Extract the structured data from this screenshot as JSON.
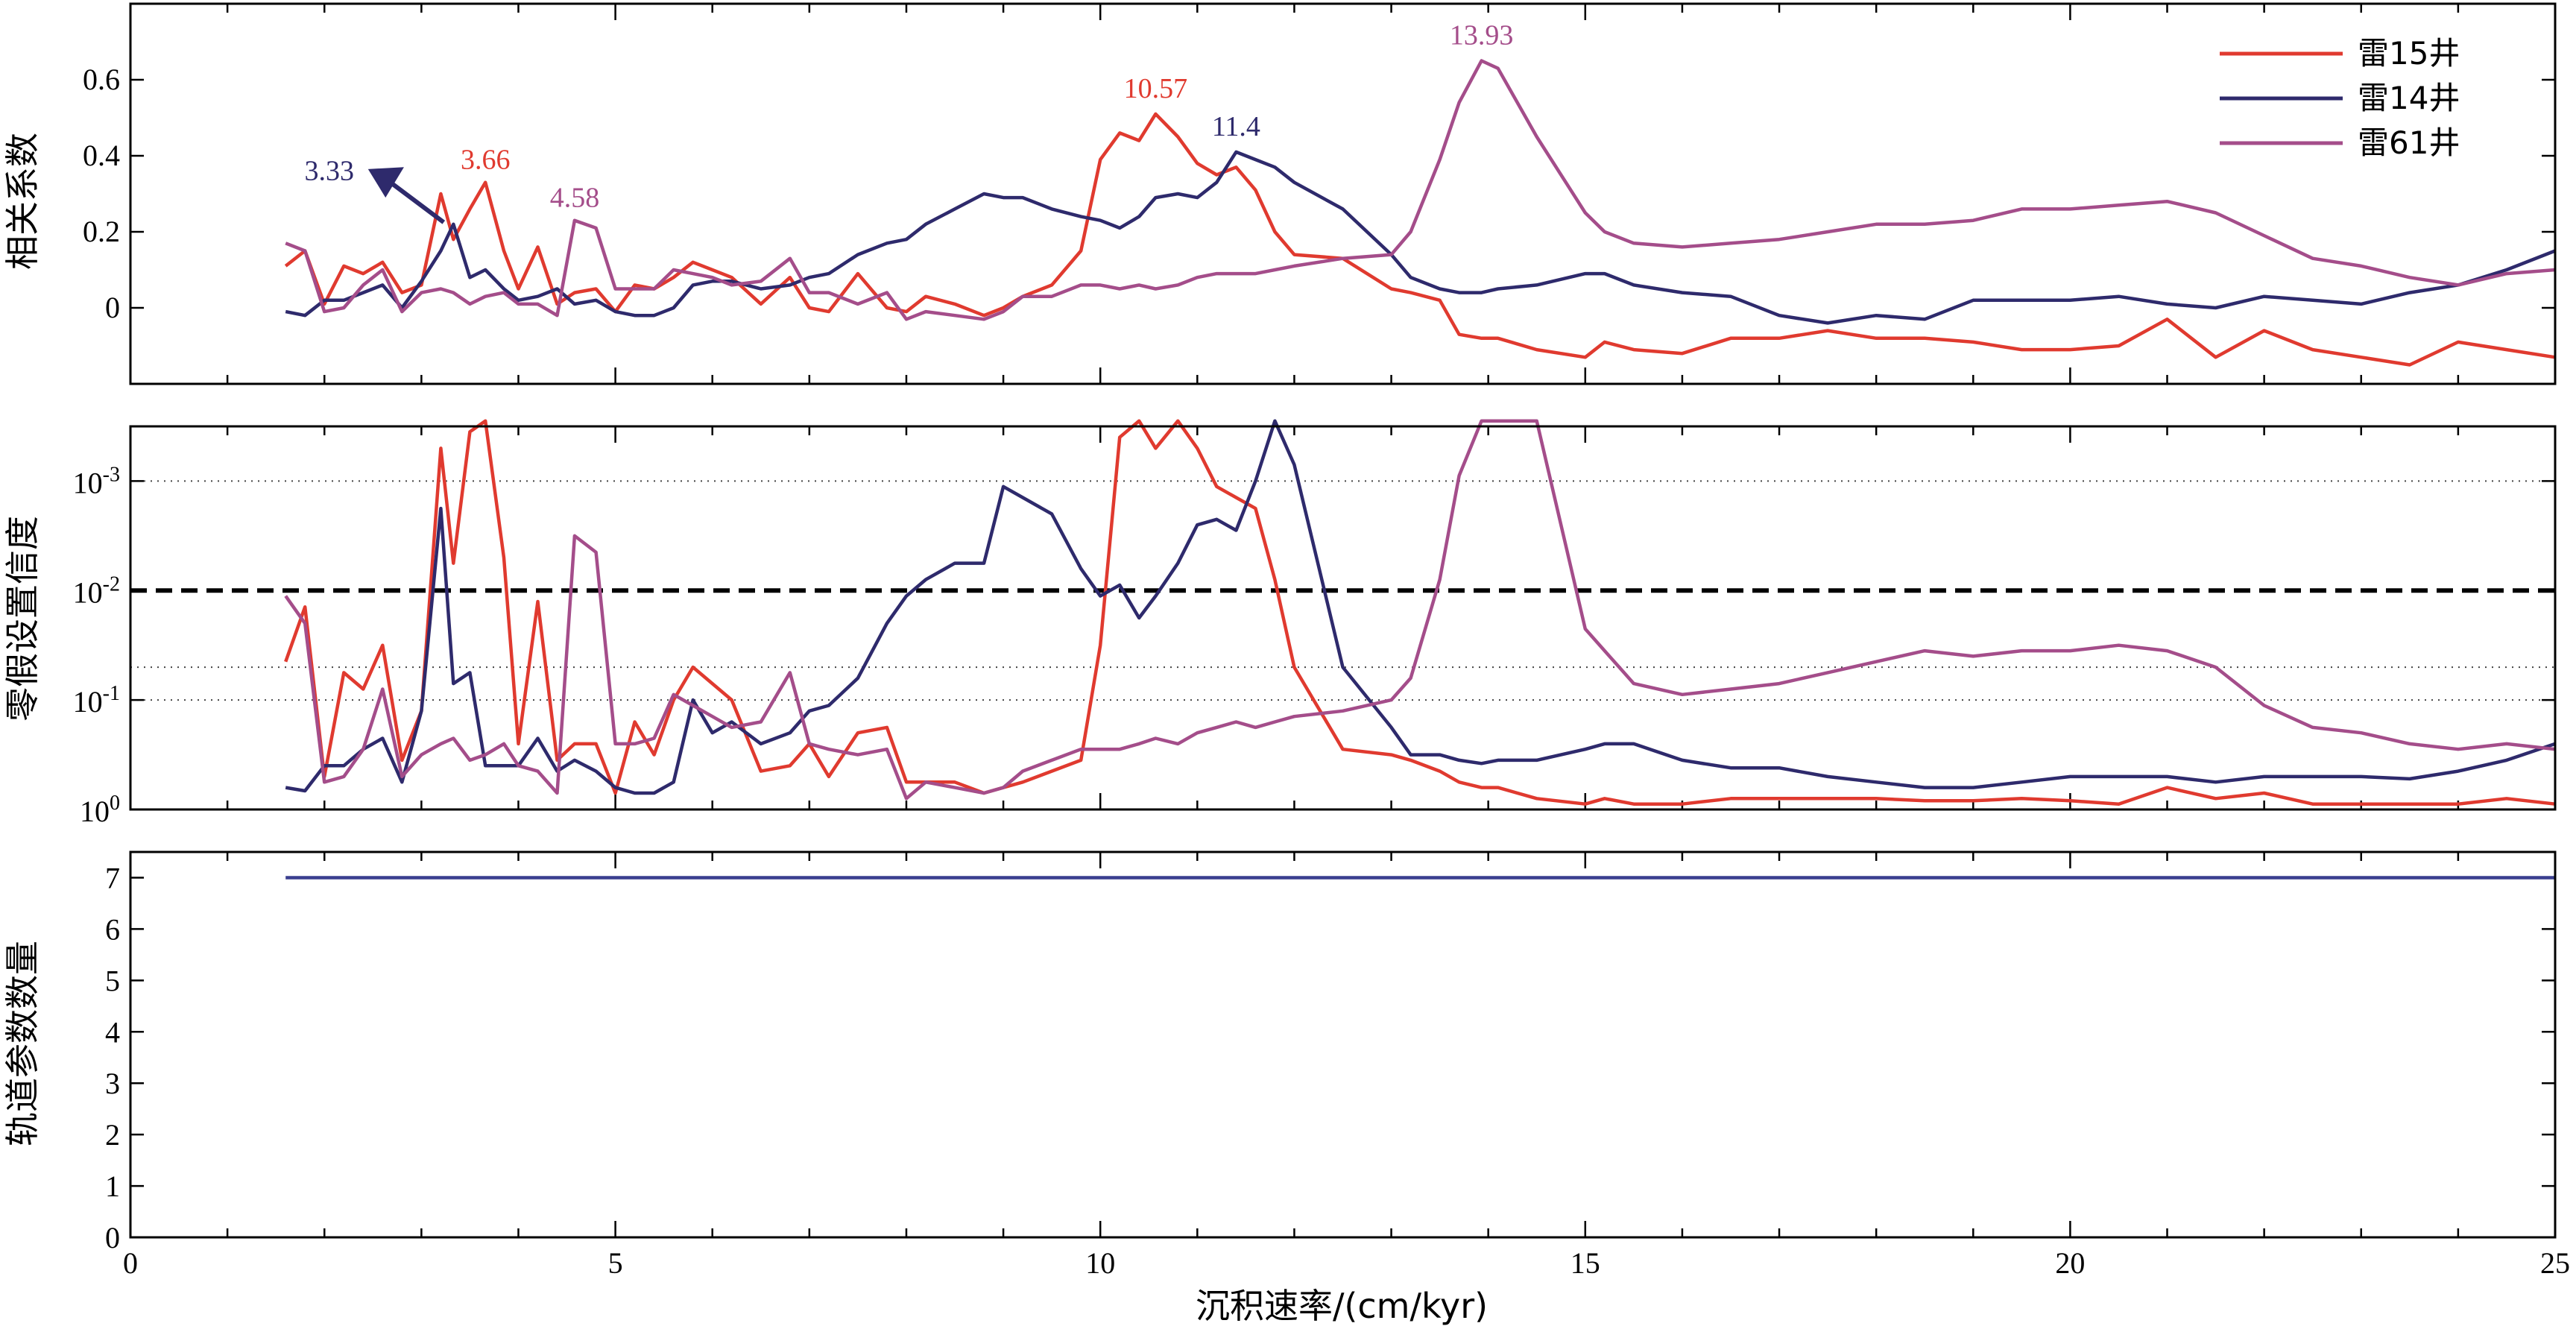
{
  "colors": {
    "lei15": "#e03a2f",
    "lei14": "#2e2a6c",
    "lei61": "#a44d8a"
  },
  "chart_data": [
    {
      "type": "line",
      "ylabel": "相关系数",
      "xlabel": "",
      "xlim": [
        0,
        25
      ],
      "ylim": [
        -0.2,
        0.8
      ],
      "xticks": [
        "0",
        "5",
        "10",
        "15",
        "20",
        "25"
      ],
      "yticks": [
        "0",
        "0.2",
        "0.4",
        "0.6"
      ],
      "legend": "top-right",
      "x": [
        1.6,
        1.8,
        2,
        2.2,
        2.4,
        2.6,
        2.8,
        3,
        3.2,
        3.33,
        3.5,
        3.66,
        3.85,
        4,
        4.2,
        4.4,
        4.58,
        4.8,
        5,
        5.2,
        5.4,
        5.6,
        5.8,
        6,
        6.2,
        6.5,
        6.8,
        7,
        7.2,
        7.5,
        7.8,
        8,
        8.2,
        8.5,
        8.8,
        9,
        9.2,
        9.5,
        9.8,
        10,
        10.2,
        10.4,
        10.57,
        10.8,
        11,
        11.2,
        11.4,
        11.6,
        11.8,
        12,
        12.5,
        13,
        13.2,
        13.5,
        13.7,
        13.93,
        14.1,
        14.5,
        15,
        15.2,
        15.5,
        16,
        16.5,
        17,
        17.5,
        18,
        18.5,
        19,
        19.5,
        20,
        20.5,
        21,
        21.5,
        22,
        22.5,
        23,
        23.5,
        24,
        24.5,
        25
      ],
      "series": [
        {
          "name": "雷15井",
          "color_key": "lei15",
          "values": [
            0.11,
            0.15,
            0.01,
            0.11,
            0.09,
            0.12,
            0.04,
            0.06,
            0.3,
            0.18,
            0.26,
            0.33,
            0.15,
            0.05,
            0.16,
            0.01,
            0.04,
            0.05,
            -0.01,
            0.06,
            0.05,
            0.08,
            0.12,
            0.1,
            0.08,
            0.01,
            0.08,
            0.0,
            -0.01,
            0.09,
            0.0,
            -0.01,
            0.03,
            0.01,
            -0.02,
            0.0,
            0.03,
            0.06,
            0.15,
            0.39,
            0.46,
            0.44,
            0.51,
            0.45,
            0.38,
            0.35,
            0.37,
            0.31,
            0.2,
            0.14,
            0.13,
            0.05,
            0.04,
            0.02,
            -0.07,
            -0.08,
            -0.08,
            -0.11,
            -0.13,
            -0.09,
            -0.11,
            -0.12,
            -0.08,
            -0.08,
            -0.06,
            -0.08,
            -0.08,
            -0.09,
            -0.11,
            -0.11,
            -0.1,
            -0.03,
            -0.13,
            -0.06,
            -0.11,
            -0.13,
            -0.15,
            -0.09,
            -0.11,
            -0.13
          ]
        },
        {
          "name": "雷14井",
          "color_key": "lei14",
          "values": [
            -0.01,
            -0.02,
            0.02,
            0.02,
            0.04,
            0.06,
            0.0,
            0.07,
            0.15,
            0.22,
            0.08,
            0.1,
            0.05,
            0.02,
            0.03,
            0.05,
            0.01,
            0.02,
            -0.01,
            -0.02,
            -0.02,
            0.0,
            0.06,
            0.07,
            0.07,
            0.05,
            0.06,
            0.08,
            0.09,
            0.14,
            0.17,
            0.18,
            0.22,
            0.26,
            0.3,
            0.29,
            0.29,
            0.26,
            0.24,
            0.23,
            0.21,
            0.24,
            0.29,
            0.3,
            0.29,
            0.33,
            0.41,
            0.39,
            0.37,
            0.33,
            0.26,
            0.14,
            0.08,
            0.05,
            0.04,
            0.04,
            0.05,
            0.06,
            0.09,
            0.09,
            0.06,
            0.04,
            0.03,
            -0.02,
            -0.04,
            -0.02,
            -0.03,
            0.02,
            0.02,
            0.02,
            0.03,
            0.01,
            0.0,
            0.03,
            0.02,
            0.01,
            0.04,
            0.06,
            0.1,
            0.15
          ]
        },
        {
          "name": "雷61井",
          "color_key": "lei61",
          "values": [
            0.17,
            0.15,
            -0.01,
            0.0,
            0.06,
            0.1,
            -0.01,
            0.04,
            0.05,
            0.04,
            0.01,
            0.03,
            0.04,
            0.01,
            0.01,
            -0.02,
            0.23,
            0.21,
            0.05,
            0.05,
            0.05,
            0.1,
            0.09,
            0.08,
            0.06,
            0.07,
            0.13,
            0.04,
            0.04,
            0.01,
            0.04,
            -0.03,
            -0.01,
            -0.02,
            -0.03,
            -0.01,
            0.03,
            0.03,
            0.06,
            0.06,
            0.05,
            0.06,
            0.05,
            0.06,
            0.08,
            0.09,
            0.09,
            0.09,
            0.1,
            0.11,
            0.13,
            0.14,
            0.2,
            0.39,
            0.54,
            0.65,
            0.63,
            0.45,
            0.25,
            0.2,
            0.17,
            0.16,
            0.17,
            0.18,
            0.2,
            0.22,
            0.22,
            0.23,
            0.26,
            0.26,
            0.27,
            0.28,
            0.25,
            0.19,
            0.13,
            0.11,
            0.08,
            0.06,
            0.09,
            0.1
          ]
        }
      ],
      "annotations": [
        {
          "text": "3.33",
          "x": 3.33,
          "y": 0.22,
          "color_key": "lei14",
          "arrow": true
        },
        {
          "text": "3.66",
          "x": 3.66,
          "y": 0.33,
          "color_key": "lei15"
        },
        {
          "text": "4.58",
          "x": 4.58,
          "y": 0.23,
          "color_key": "lei61"
        },
        {
          "text": "10.57",
          "x": 10.57,
          "y": 0.51,
          "color_key": "lei15"
        },
        {
          "text": "11.4",
          "x": 11.4,
          "y": 0.41,
          "color_key": "lei14"
        },
        {
          "text": "13.93",
          "x": 13.93,
          "y": 0.65,
          "color_key": "lei61"
        }
      ]
    },
    {
      "type": "line",
      "ylabel": "零假设置信度",
      "xlabel": "",
      "xlim": [
        0,
        25
      ],
      "yscale": "log-reversed",
      "ylim_log10": [
        0,
        -3.5
      ],
      "yticks": [
        {
          "base": "10",
          "exp": "0",
          "log10": 0
        },
        {
          "base": "10",
          "exp": "-1",
          "log10": -1
        },
        {
          "base": "10",
          "exp": "-2",
          "log10": -2
        },
        {
          "base": "10",
          "exp": "-3",
          "log10": -3
        }
      ],
      "dashed_threshold_log10": -2,
      "dotted_lines_log10": [
        -1,
        -1.3,
        -3
      ],
      "x": [
        1.6,
        1.8,
        2,
        2.2,
        2.4,
        2.6,
        2.8,
        3,
        3.2,
        3.33,
        3.5,
        3.66,
        3.85,
        4,
        4.2,
        4.4,
        4.58,
        4.8,
        5,
        5.2,
        5.4,
        5.6,
        5.8,
        6,
        6.2,
        6.5,
        6.8,
        7,
        7.2,
        7.5,
        7.8,
        8,
        8.2,
        8.5,
        8.8,
        9,
        9.2,
        9.5,
        9.8,
        10,
        10.2,
        10.4,
        10.57,
        10.8,
        11,
        11.2,
        11.4,
        11.6,
        11.8,
        12,
        12.5,
        13,
        13.2,
        13.5,
        13.7,
        13.93,
        14.1,
        14.5,
        15,
        15.2,
        15.5,
        16,
        16.5,
        17,
        17.5,
        18,
        18.5,
        19,
        19.5,
        20,
        20.5,
        21,
        21.5,
        22,
        22.5,
        23,
        23.5,
        24,
        24.5,
        25
      ],
      "series": [
        {
          "name": "雷15井",
          "color_key": "lei15",
          "log10_values": [
            -1.35,
            -1.85,
            -0.3,
            -1.25,
            -1.1,
            -1.5,
            -0.45,
            -0.9,
            -3.3,
            -2.25,
            -3.45,
            -3.55,
            -2.3,
            -0.6,
            -1.9,
            -0.45,
            -0.6,
            -0.6,
            -0.15,
            -0.8,
            -0.5,
            -1.0,
            -1.3,
            -1.15,
            -1.0,
            -0.35,
            -0.4,
            -0.6,
            -0.3,
            -0.7,
            -0.75,
            -0.25,
            -0.25,
            -0.25,
            -0.15,
            -0.2,
            -0.25,
            -0.35,
            -0.45,
            -1.5,
            -3.4,
            -3.55,
            -3.3,
            -3.55,
            -3.3,
            -2.95,
            -2.85,
            -2.75,
            -2.1,
            -1.3,
            -0.55,
            -0.5,
            -0.45,
            -0.35,
            -0.25,
            -0.2,
            -0.2,
            -0.1,
            -0.05,
            -0.1,
            -0.05,
            -0.05,
            -0.1,
            -0.1,
            -0.1,
            -0.1,
            -0.08,
            -0.08,
            -0.1,
            -0.08,
            -0.05,
            -0.2,
            -0.1,
            -0.15,
            -0.05,
            -0.05,
            -0.05,
            -0.05,
            -0.1,
            -0.05
          ]
        },
        {
          "name": "雷14井",
          "color_key": "lei14",
          "log10_values": [
            -0.2,
            -0.17,
            -0.4,
            -0.4,
            -0.55,
            -0.65,
            -0.25,
            -0.9,
            -2.75,
            -1.15,
            -1.25,
            -0.4,
            -0.4,
            -0.4,
            -0.65,
            -0.35,
            -0.45,
            -0.35,
            -0.2,
            -0.15,
            -0.15,
            -0.25,
            -1.0,
            -0.7,
            -0.8,
            -0.6,
            -0.7,
            -0.9,
            -0.95,
            -1.2,
            -1.7,
            -1.95,
            -2.1,
            -2.25,
            -2.25,
            -2.95,
            -2.85,
            -2.7,
            -2.2,
            -1.95,
            -2.05,
            -1.75,
            -1.95,
            -2.25,
            -2.6,
            -2.65,
            -2.55,
            -3.0,
            -3.55,
            -3.15,
            -1.3,
            -0.75,
            -0.5,
            -0.5,
            -0.45,
            -0.42,
            -0.45,
            -0.45,
            -0.55,
            -0.6,
            -0.6,
            -0.45,
            -0.38,
            -0.38,
            -0.3,
            -0.25,
            -0.2,
            -0.2,
            -0.25,
            -0.3,
            -0.3,
            -0.3,
            -0.25,
            -0.3,
            -0.3,
            -0.3,
            -0.28,
            -0.35,
            -0.45,
            -0.6
          ]
        },
        {
          "name": "雷61井",
          "color_key": "lei61",
          "log10_values": [
            -1.95,
            -1.7,
            -0.25,
            -0.3,
            -0.55,
            -1.1,
            -0.3,
            -0.5,
            -0.6,
            -0.65,
            -0.45,
            -0.5,
            -0.6,
            -0.4,
            -0.35,
            -0.15,
            -2.5,
            -2.35,
            -0.6,
            -0.6,
            -0.65,
            -1.05,
            -0.95,
            -0.85,
            -0.75,
            -0.8,
            -1.25,
            -0.6,
            -0.55,
            -0.5,
            -0.55,
            -0.1,
            -0.25,
            -0.2,
            -0.15,
            -0.2,
            -0.35,
            -0.45,
            -0.55,
            -0.55,
            -0.55,
            -0.6,
            -0.65,
            -0.6,
            -0.7,
            -0.75,
            -0.8,
            -0.75,
            -0.8,
            -0.85,
            -0.9,
            -1.0,
            -1.2,
            -2.1,
            -3.05,
            -3.55,
            -3.55,
            -3.55,
            -1.65,
            -1.45,
            -1.15,
            -1.05,
            -1.1,
            -1.15,
            -1.25,
            -1.35,
            -1.45,
            -1.4,
            -1.45,
            -1.45,
            -1.5,
            -1.45,
            -1.3,
            -0.95,
            -0.75,
            -0.7,
            -0.6,
            -0.55,
            -0.6,
            -0.55
          ]
        }
      ]
    },
    {
      "type": "line",
      "ylabel": "轨道参数数量",
      "xlabel": "沉积速率/(cm/kyr)",
      "xlim": [
        0,
        25
      ],
      "ylim": [
        0,
        7.5
      ],
      "yticks": [
        "0",
        "1",
        "2",
        "3",
        "4",
        "5",
        "6",
        "7"
      ],
      "xticks": [
        "0",
        "5",
        "10",
        "15",
        "20",
        "25"
      ],
      "x": [
        1.6,
        25
      ],
      "series": [
        {
          "name": "",
          "color_key": "lei14",
          "values": [
            7,
            7
          ]
        }
      ]
    }
  ]
}
